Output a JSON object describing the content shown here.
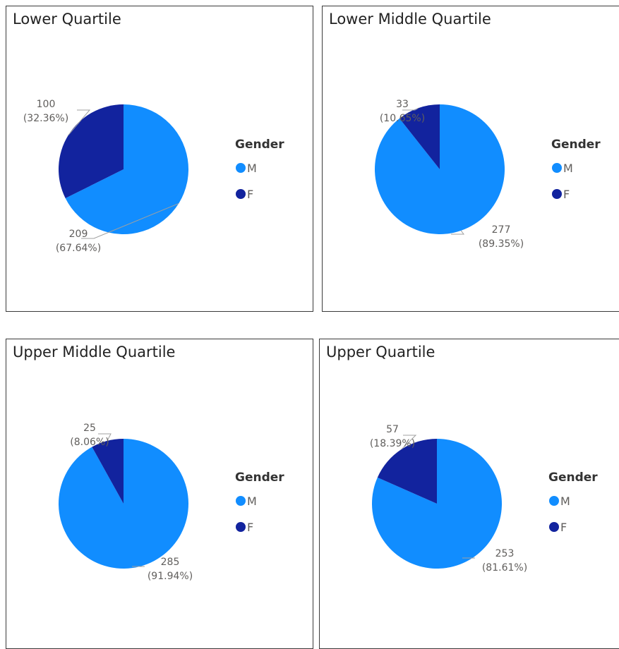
{
  "colors": {
    "M": "#118dff",
    "F": "#12239e",
    "leader": "#a0a0a0"
  },
  "legend": {
    "title": "Gender",
    "items": [
      "M",
      "F"
    ]
  },
  "chart_data": [
    {
      "type": "pie",
      "title": "Lower Quartile",
      "categories": [
        "M",
        "F"
      ],
      "values": [
        209,
        100
      ],
      "labels": [
        {
          "value": "209",
          "percent": "(67.64%)"
        },
        {
          "value": "100",
          "percent": "(32.36%)"
        }
      ]
    },
    {
      "type": "pie",
      "title": "Lower Middle Quartile",
      "categories": [
        "M",
        "F"
      ],
      "values": [
        277,
        33
      ],
      "labels": [
        {
          "value": "277",
          "percent": "(89.35%)"
        },
        {
          "value": "33",
          "percent": "(10.65%)"
        }
      ]
    },
    {
      "type": "pie",
      "title": "Upper Middle Quartile",
      "categories": [
        "M",
        "F"
      ],
      "values": [
        285,
        25
      ],
      "labels": [
        {
          "value": "285",
          "percent": "(91.94%)"
        },
        {
          "value": "25",
          "percent": "(8.06%)"
        }
      ]
    },
    {
      "type": "pie",
      "title": "Upper Quartile",
      "categories": [
        "M",
        "F"
      ],
      "values": [
        253,
        57
      ],
      "labels": [
        {
          "value": "253",
          "percent": "(81.61%)"
        },
        {
          "value": "57",
          "percent": "(18.39%)"
        }
      ]
    }
  ]
}
